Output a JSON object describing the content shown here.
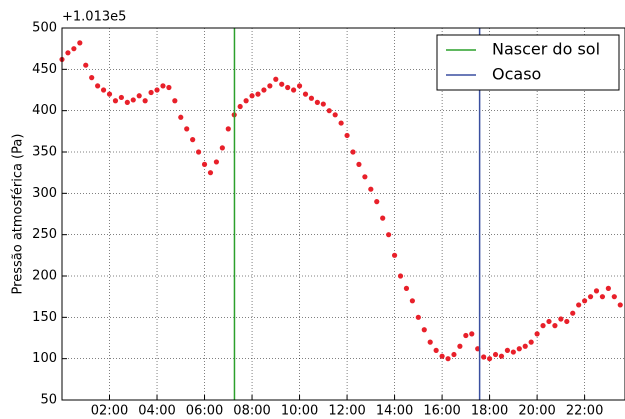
{
  "chart_data": {
    "type": "scatter",
    "offset_text": "+1.013e5",
    "y_label": "Pressão atmosférica (Pa)",
    "xlim": [
      0,
      23.7
    ],
    "ylim": [
      50,
      500
    ],
    "xticks": [
      {
        "value": 2,
        "label": "02:00"
      },
      {
        "value": 4,
        "label": "04:00"
      },
      {
        "value": 6,
        "label": "06:00"
      },
      {
        "value": 8,
        "label": "08:00"
      },
      {
        "value": 10,
        "label": "10:00"
      },
      {
        "value": 12,
        "label": "12:00"
      },
      {
        "value": 14,
        "label": "14:00"
      },
      {
        "value": 16,
        "label": "16:00"
      },
      {
        "value": 18,
        "label": "18:00"
      },
      {
        "value": 20,
        "label": "20:00"
      },
      {
        "value": 22,
        "label": "22:00"
      }
    ],
    "yticks": [
      50,
      100,
      150,
      200,
      250,
      300,
      350,
      400,
      450,
      500
    ],
    "grid": true,
    "legend": "upper right",
    "color": "#e8202a",
    "x": [
      0,
      0.25,
      0.5,
      0.75,
      1,
      1.25,
      1.5,
      1.75,
      2,
      2.25,
      2.5,
      2.75,
      3,
      3.25,
      3.5,
      3.75,
      4,
      4.25,
      4.5,
      4.75,
      5,
      5.25,
      5.5,
      5.75,
      6,
      6.25,
      6.5,
      6.75,
      7,
      7.25,
      7.5,
      7.75,
      8,
      8.25,
      8.5,
      8.75,
      9,
      9.25,
      9.5,
      9.75,
      10,
      10.25,
      10.5,
      10.75,
      11,
      11.25,
      11.5,
      11.75,
      12,
      12.25,
      12.5,
      12.75,
      13,
      13.25,
      13.5,
      13.75,
      14,
      14.25,
      14.5,
      14.75,
      15,
      15.25,
      15.5,
      15.75,
      16,
      16.25,
      16.5,
      16.75,
      17,
      17.25,
      17.5,
      17.75,
      18,
      18.25,
      18.5,
      18.75,
      19,
      19.25,
      19.5,
      19.75,
      20,
      20.25,
      20.5,
      20.75,
      21,
      21.25,
      21.5,
      21.75,
      22,
      22.25,
      22.5,
      22.75,
      23,
      23.25,
      23.5
    ],
    "values": [
      462,
      470,
      475,
      482,
      455,
      440,
      430,
      425,
      420,
      412,
      416,
      410,
      413,
      418,
      412,
      422,
      425,
      430,
      428,
      412,
      392,
      378,
      365,
      350,
      335,
      325,
      338,
      355,
      378,
      395,
      405,
      412,
      418,
      420,
      425,
      430,
      438,
      432,
      428,
      425,
      430,
      420,
      415,
      410,
      408,
      400,
      395,
      385,
      370,
      350,
      335,
      320,
      305,
      290,
      270,
      250,
      225,
      200,
      185,
      170,
      150,
      135,
      120,
      110,
      103,
      100,
      105,
      115,
      128,
      130,
      112,
      102,
      100,
      105,
      103,
      110,
      108,
      112,
      115,
      120,
      130,
      140,
      145,
      140,
      148,
      145,
      155,
      165,
      170,
      175,
      182,
      175,
      185,
      175,
      165
    ],
    "vlines": [
      {
        "name": "Nascer do sol",
        "color": "#2ca02c",
        "x": 7.26
      },
      {
        "name": "Ocaso",
        "color": "#3a4fa0",
        "x": 17.58
      }
    ]
  }
}
